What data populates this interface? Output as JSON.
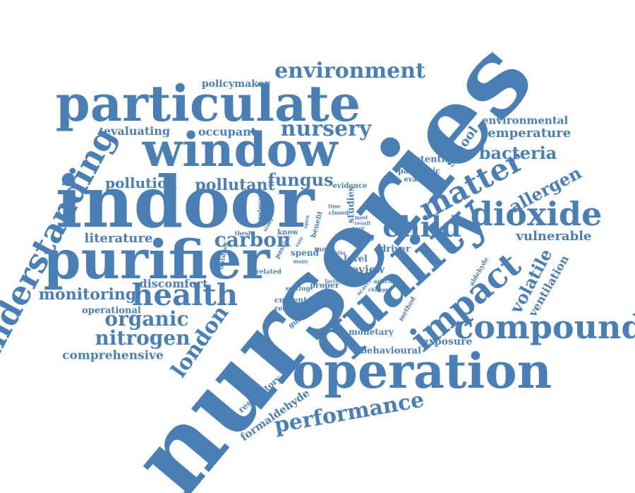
{
  "colors": {
    "word": "#4a7fb5",
    "background": "#ffffff"
  },
  "words": {
    "nurseries": "nurseries",
    "indoor": "indoor",
    "particulate": "particulate",
    "window": "window",
    "purifier": "purifier",
    "quality": "quality",
    "operation": "operation",
    "understanding": "understanding",
    "impact": "impact",
    "compound": "compound",
    "dioxide": "dioxide",
    "matter": "matter",
    "child": "child",
    "health": "health",
    "environment": "environment",
    "nursery": "nursery",
    "performance": "performance",
    "nitrogen": "nitrogen",
    "organic": "organic",
    "london": "london",
    "monitoring": "monitoring",
    "carbon": "carbon",
    "fungus": "fungus",
    "pollutant": "pollutant",
    "pollution": "pollution",
    "bacteria": "bacteria",
    "allergen": "allergen",
    "temperature": "temperature",
    "environmental": "environmental",
    "volatile": "volatile",
    "school": "school",
    "vulnerable": "vulnerable",
    "ventilation": "ventilation",
    "literature": "literature",
    "evaluating": "evaluating",
    "occupant": "occupant",
    "policymaker": "policymaker",
    "comprehensive": "comprehensive",
    "discomfort": "discomfort",
    "operational": "operational",
    "exposure": "exposure",
    "behavioural": "behavioural",
    "monetary": "monetary",
    "formaldehyde": "formaldehyde",
    "respiratory": "respiratory",
    "review": "review",
    "driver": "driver",
    "level": "level",
    "young": "young",
    "studies": "studies",
    "potential": "potential",
    "pandemic": "pandemic",
    "evaluate": "evaluate",
    "evidence": "evidence",
    "current": "current",
    "reduction": "reduction",
    "guideline": "guideline",
    "proper": "proper",
    "setting": "setting",
    "related": "related",
    "spend": "spend",
    "more": "more",
    "benefit": "benefit",
    "relevant": "relevant",
    "know": "know",
    "thesis": "thesis",
    "outdoor": "outdoor",
    "passive": "passive",
    "many": "many",
    "article": "article",
    "aldehyde": "aldehyde",
    "method": "method",
    "scarce": "scarce",
    "factor": "factor",
    "change": "change",
    "ratio": "ratio",
    "time": "time",
    "closed": "closed",
    "most": "most",
    "result": "result",
    "poor": "poor",
    "study": "study",
    "open": "open",
    "rate": "rate"
  }
}
